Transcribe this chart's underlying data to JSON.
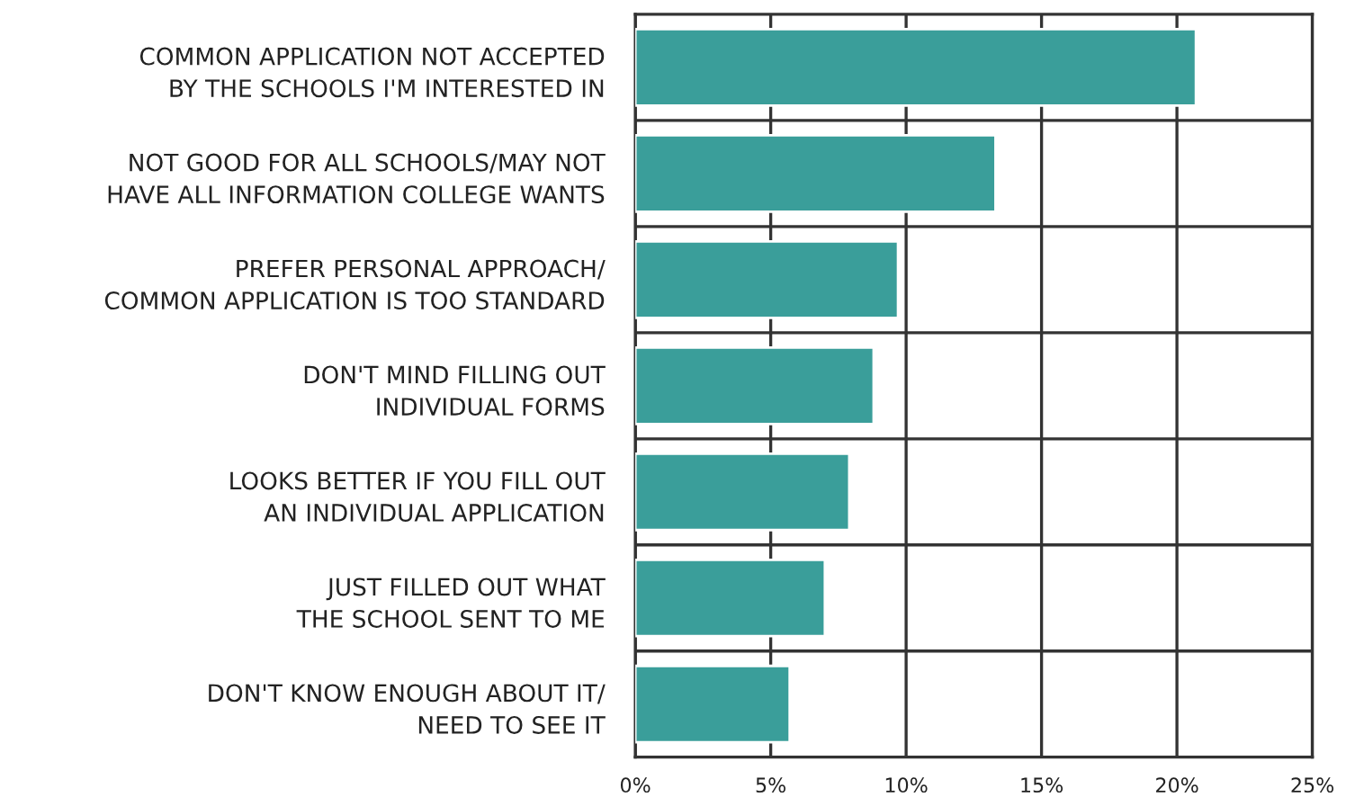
{
  "chart_data": {
    "type": "bar",
    "orientation": "horizontal",
    "categories": [
      "COMMON APPLICATION NOT ACCEPTED\nBY THE SCHOOLS I'M INTERESTED IN",
      "NOT GOOD FOR ALL SCHOOLS/MAY NOT\nHAVE ALL INFORMATION COLLEGE WANTS",
      "PREFER PERSONAL APPROACH/\nCOMMON APPLICATION IS TOO STANDARD",
      "DON'T MIND FILLING OUT\nINDIVIDUAL FORMS",
      "LOOKS BETTER IF YOU FILL OUT\nAN INDIVIDUAL APPLICATION",
      "JUST FILLED OUT WHAT\nTHE SCHOOL SENT TO ME",
      "DON'T KNOW ENOUGH ABOUT IT/\nNEED TO SEE IT"
    ],
    "values": [
      20.7,
      13.3,
      9.7,
      8.8,
      7.9,
      7.0,
      5.7
    ],
    "color": "#3a9e9a",
    "xlim": [
      0,
      25
    ],
    "xticks": [
      {
        "value": 0,
        "label": "0%"
      },
      {
        "value": 5,
        "label": "5%"
      },
      {
        "value": 10,
        "label": "10%"
      },
      {
        "value": 15,
        "label": "15%"
      },
      {
        "value": 20,
        "label": "20%"
      },
      {
        "value": 25,
        "label": "25%"
      }
    ],
    "grid": true,
    "legend": false
  }
}
